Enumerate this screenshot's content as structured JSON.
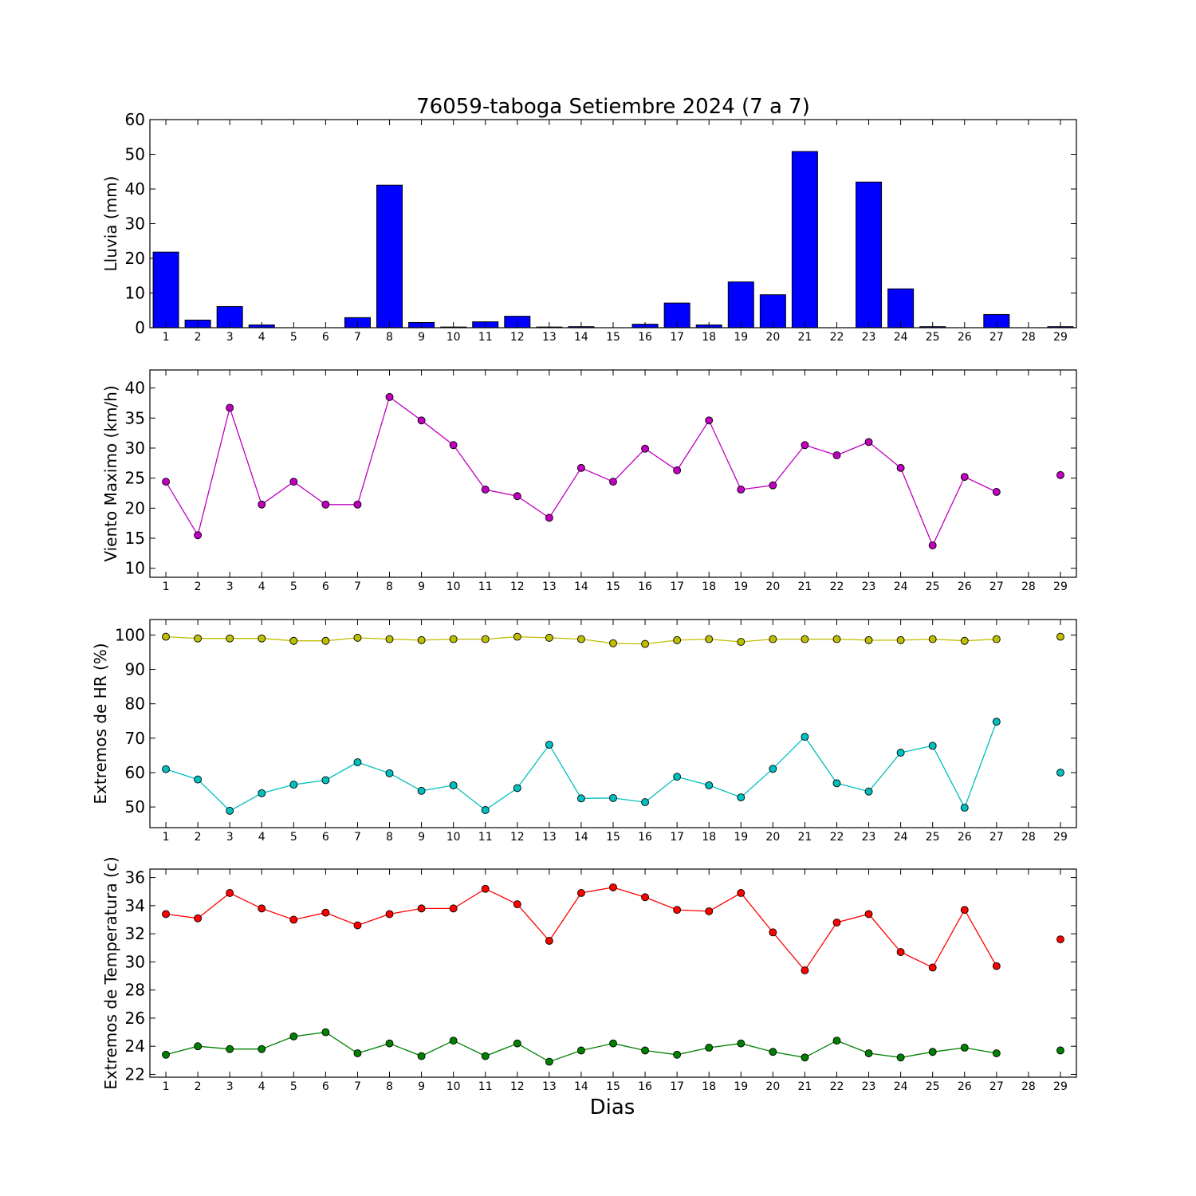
{
  "chart_data": [
    {
      "type": "bar",
      "title": "76059-taboga Setiembre 2024  (7 a 7)",
      "ylabel": "Lluvia (mm)",
      "xlabel": "",
      "ylim": [
        0,
        60
      ],
      "yticks": [
        0,
        10,
        20,
        30,
        40,
        50,
        60
      ],
      "x": [
        1,
        2,
        3,
        4,
        5,
        6,
        7,
        8,
        9,
        10,
        11,
        12,
        13,
        14,
        15,
        16,
        17,
        18,
        19,
        20,
        21,
        22,
        23,
        24,
        25,
        26,
        27,
        28,
        29
      ],
      "values": [
        21.8,
        2.2,
        6.1,
        0.8,
        0,
        0,
        2.9,
        41.1,
        1.5,
        0.2,
        1.7,
        3.3,
        0.2,
        0.3,
        0,
        1.0,
        7.1,
        0.8,
        13.2,
        9.5,
        50.8,
        0,
        42.0,
        11.2,
        0.3,
        0,
        3.8,
        0,
        0.3
      ],
      "color": "#0000ff"
    },
    {
      "type": "line",
      "ylabel": "Viento Maximo (km/h)",
      "xlabel": "",
      "ylim": [
        8.5,
        43
      ],
      "yticks": [
        10,
        15,
        20,
        25,
        30,
        35,
        40
      ],
      "x": [
        1,
        2,
        3,
        4,
        5,
        6,
        7,
        8,
        9,
        10,
        11,
        12,
        13,
        14,
        15,
        16,
        17,
        18,
        19,
        20,
        21,
        22,
        23,
        24,
        25,
        26,
        27,
        28,
        29
      ],
      "series": [
        {
          "color": "#bf00bf",
          "values": [
            24.4,
            15.5,
            36.7,
            20.6,
            24.4,
            20.6,
            20.6,
            38.5,
            34.6,
            30.5,
            23.1,
            22.0,
            18.4,
            26.7,
            24.4,
            29.9,
            26.3,
            34.6,
            23.1,
            23.8,
            30.5,
            28.8,
            31.0,
            26.7,
            13.8,
            25.2,
            22.7,
            null,
            25.5
          ]
        }
      ]
    },
    {
      "type": "line",
      "ylabel": "Extremos de HR (%)",
      "xlabel": "",
      "ylim": [
        44,
        104.5
      ],
      "yticks": [
        50,
        60,
        70,
        80,
        90,
        100
      ],
      "x": [
        1,
        2,
        3,
        4,
        5,
        6,
        7,
        8,
        9,
        10,
        11,
        12,
        13,
        14,
        15,
        16,
        17,
        18,
        19,
        20,
        21,
        22,
        23,
        24,
        25,
        26,
        27,
        28,
        29
      ],
      "series": [
        {
          "color": "#bfbf00",
          "values": [
            99.5,
            99.0,
            99.0,
            99.0,
            98.3,
            98.3,
            99.2,
            98.8,
            98.5,
            98.8,
            98.8,
            99.5,
            99.2,
            98.8,
            97.6,
            97.4,
            98.5,
            98.8,
            98.0,
            98.8,
            98.8,
            98.8,
            98.5,
            98.5,
            98.8,
            98.3,
            98.8,
            null,
            99.5
          ]
        },
        {
          "color": "#00bfbf",
          "values": [
            61.0,
            58.0,
            48.9,
            54.0,
            56.5,
            57.8,
            63.0,
            59.8,
            54.7,
            56.3,
            49.1,
            55.5,
            68.1,
            52.5,
            52.6,
            51.4,
            58.8,
            56.3,
            52.8,
            61.1,
            70.4,
            56.9,
            54.5,
            65.8,
            67.8,
            49.8,
            74.8,
            null,
            60.0
          ]
        }
      ]
    },
    {
      "type": "line",
      "ylabel": "Extremos de Temperatura (c)",
      "xlabel": "Dias",
      "ylim": [
        21.8,
        36.6
      ],
      "yticks": [
        22,
        24,
        26,
        28,
        30,
        32,
        34,
        36
      ],
      "x": [
        1,
        2,
        3,
        4,
        5,
        6,
        7,
        8,
        9,
        10,
        11,
        12,
        13,
        14,
        15,
        16,
        17,
        18,
        19,
        20,
        21,
        22,
        23,
        24,
        25,
        26,
        27,
        28,
        29
      ],
      "series": [
        {
          "color": "#ff0000",
          "values": [
            33.4,
            33.1,
            34.9,
            33.8,
            33.0,
            33.5,
            32.6,
            33.4,
            33.8,
            33.8,
            35.2,
            34.1,
            31.5,
            34.9,
            35.3,
            34.6,
            33.7,
            33.6,
            34.9,
            32.1,
            29.4,
            32.8,
            33.4,
            30.7,
            29.6,
            33.7,
            29.7,
            null,
            31.6
          ]
        },
        {
          "color": "#008000",
          "values": [
            23.4,
            24.0,
            23.8,
            23.8,
            24.7,
            25.0,
            23.5,
            24.2,
            23.3,
            24.4,
            23.3,
            24.2,
            22.9,
            23.7,
            24.2,
            23.7,
            23.4,
            23.9,
            24.2,
            23.6,
            23.2,
            24.4,
            23.5,
            23.2,
            23.6,
            23.9,
            23.5,
            null,
            23.7
          ]
        }
      ]
    }
  ]
}
